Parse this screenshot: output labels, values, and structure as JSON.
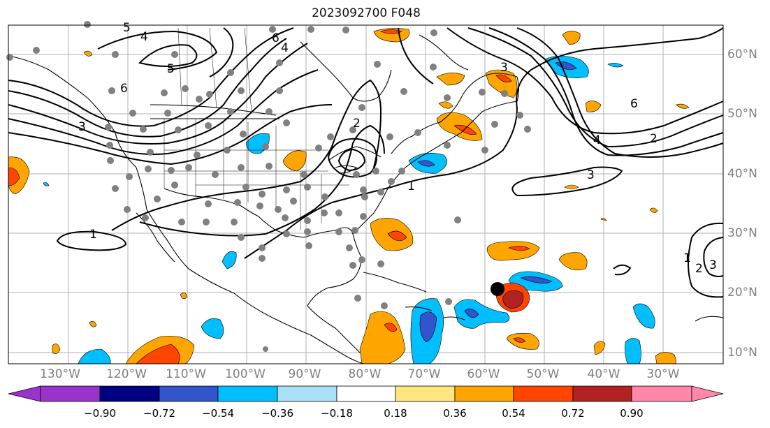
{
  "title": "2023092700 F048",
  "axes": {
    "longitude_labels": [
      "130°W",
      "120°W",
      "110°W",
      "100°W",
      "90°W",
      "80°W",
      "70°W",
      "60°W",
      "50°W",
      "40°W",
      "30°W"
    ],
    "latitude_labels": [
      "60°N",
      "50°N",
      "40°N",
      "30°N",
      "20°N",
      "10°N"
    ]
  },
  "contour_labels": [
    "5",
    "4",
    "6",
    "5",
    "4",
    "6",
    "3",
    "2",
    "1",
    "3",
    "1",
    "6",
    "2",
    "4",
    "3",
    "1",
    "2",
    "3"
  ],
  "colorbar": {
    "ticks": [
      "−0.90",
      "−0.72",
      "−0.54",
      "−0.36",
      "−0.18",
      "0.18",
      "0.36",
      "0.54",
      "0.72",
      "0.90"
    ],
    "colors": [
      "#9933cc",
      "#000080",
      "#3355cc",
      "#00bfff",
      "#aadff8",
      "#ffffff",
      "#ffe680",
      "#ffa500",
      "#ff4500",
      "#b22222",
      "#ff88aa"
    ]
  },
  "colors": {
    "coastline": "#000000",
    "contour": "#000000",
    "station_marker": "#808080",
    "storm_marker": "#000000",
    "grid": "#b0b0b0"
  }
}
